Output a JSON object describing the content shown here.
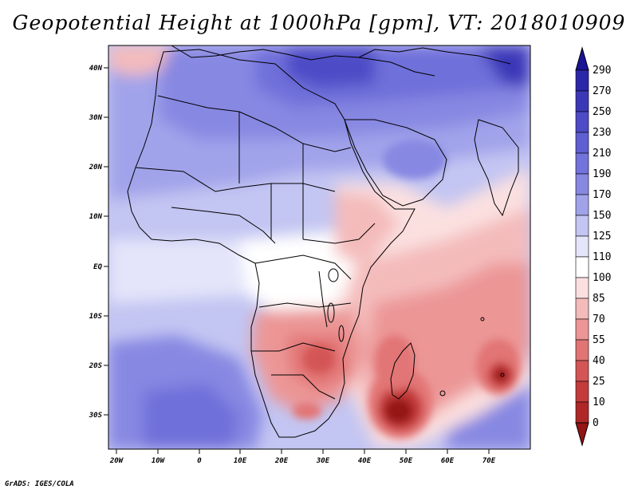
{
  "title": "Geopotential Height at 1000hPa [gpm], VT: 2018010909",
  "credit": "GrADS: IGES/COLA",
  "map": {
    "region": "Africa, Middle East and western Indian Ocean",
    "variable": "Geopotential Height at 1000hPa",
    "units": "gpm",
    "valid_time": "2018010909",
    "lon_range": [
      -22,
      80
    ],
    "lat_range": [
      -37,
      45
    ]
  },
  "axes": {
    "lat_labels": [
      "40N",
      "30N",
      "20N",
      "10N",
      "EQ",
      "10S",
      "20S",
      "30S"
    ],
    "lon_labels": [
      "20W",
      "10W",
      "0",
      "10E",
      "20E",
      "30E",
      "40E",
      "50E",
      "60E",
      "70E"
    ]
  },
  "colorbar": {
    "levels": [
      "290",
      "270",
      "250",
      "230",
      "210",
      "190",
      "170",
      "150",
      "125",
      "110",
      "100",
      "85",
      "70",
      "55",
      "40",
      "25",
      "10",
      "0"
    ],
    "colors": [
      "#1a1496",
      "#2b27a8",
      "#3b38b8",
      "#4d4bc6",
      "#5f5fd2",
      "#7273db",
      "#8788e2",
      "#a1a3ea",
      "#c3c5f2",
      "#e4e5fa",
      "#ffffff",
      "#fbe0e0",
      "#f4bbbb",
      "#ec9696",
      "#e27474",
      "#d45555",
      "#c43b3b",
      "#b02727",
      "#951414"
    ]
  }
}
